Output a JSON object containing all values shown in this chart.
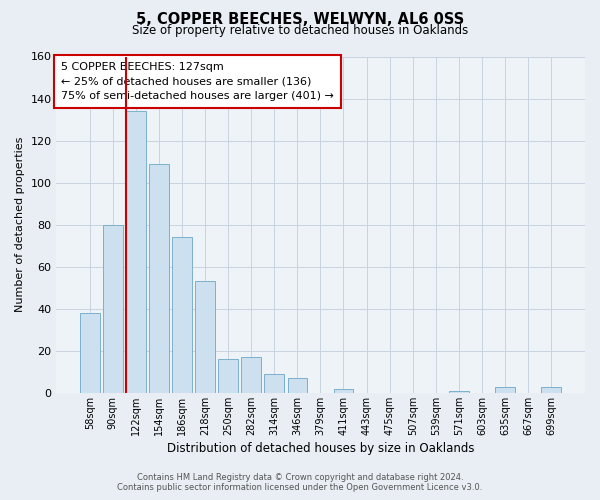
{
  "title": "5, COPPER BEECHES, WELWYN, AL6 0SS",
  "subtitle": "Size of property relative to detached houses in Oaklands",
  "xlabel": "Distribution of detached houses by size in Oaklands",
  "ylabel": "Number of detached properties",
  "bar_labels": [
    "58sqm",
    "90sqm",
    "122sqm",
    "154sqm",
    "186sqm",
    "218sqm",
    "250sqm",
    "282sqm",
    "314sqm",
    "346sqm",
    "379sqm",
    "411sqm",
    "443sqm",
    "475sqm",
    "507sqm",
    "539sqm",
    "571sqm",
    "603sqm",
    "635sqm",
    "667sqm",
    "699sqm"
  ],
  "bar_values": [
    38,
    80,
    134,
    109,
    74,
    53,
    16,
    17,
    9,
    7,
    0,
    2,
    0,
    0,
    0,
    0,
    1,
    0,
    3,
    0,
    3
  ],
  "highlight_bar_index": 2,
  "bar_color": "#cce0ef",
  "bar_edge_color": "#7ab0cc",
  "highlight_color": "#cc0000",
  "annotation_line1": "5 COPPER BEECHES: 127sqm",
  "annotation_line2": "← 25% of detached houses are smaller (136)",
  "annotation_line3": "75% of semi-detached houses are larger (401) →",
  "annotation_box_color": "#ffffff",
  "annotation_box_edge": "#cc0000",
  "ylim": [
    0,
    160
  ],
  "yticks": [
    0,
    20,
    40,
    60,
    80,
    100,
    120,
    140,
    160
  ],
  "footer_line1": "Contains HM Land Registry data © Crown copyright and database right 2024.",
  "footer_line2": "Contains public sector information licensed under the Open Government Licence v3.0.",
  "bg_color": "#e8eef4",
  "plot_bg_color": "#eef3f8",
  "grid_color": "#c8d4e0"
}
